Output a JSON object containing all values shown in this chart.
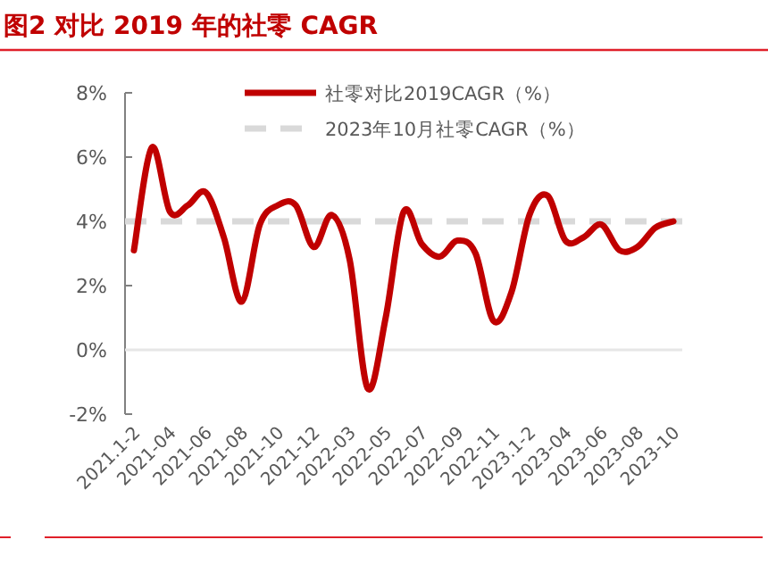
{
  "chart_data": {
    "type": "line",
    "title": "图2  对比 2019 年的社零 CAGR",
    "categories": [
      "2021.1-2",
      null,
      "2021-04",
      null,
      "2021-06",
      null,
      "2021-08",
      null,
      "2021-10",
      null,
      "2021-12",
      null,
      "2022-03",
      null,
      "2022-05",
      null,
      "2022-07",
      null,
      "2022-09",
      null,
      "2022-11",
      null,
      "2023.1-2",
      null,
      "2023-04",
      null,
      "2023-06",
      null,
      "2023-08",
      null,
      "2023-10"
    ],
    "series": [
      {
        "name": "社零对比2019CAGR（%）",
        "color": "#c00000",
        "values": [
          3.1,
          6.3,
          4.3,
          4.5,
          4.9,
          3.5,
          1.5,
          3.9,
          4.5,
          4.5,
          3.2,
          4.2,
          2.8,
          -1.2,
          1.0,
          4.3,
          3.3,
          2.9,
          3.4,
          3.0,
          0.9,
          1.8,
          4.2,
          4.8,
          3.4,
          3.5,
          3.9,
          3.1,
          3.2,
          3.8,
          4.0
        ]
      }
    ],
    "ref_lines": [
      {
        "axis": "y",
        "value": 4,
        "label": "2023年10月社零CAGR（%）",
        "color": "#d9d9d9",
        "line_style": "dashed"
      }
    ],
    "ylim": [
      -2,
      8
    ],
    "yticks": [
      {
        "value": -2,
        "label": "-2%"
      },
      {
        "value": 0,
        "label": "0%"
      },
      {
        "value": 2,
        "label": "2%"
      },
      {
        "value": 4,
        "label": "4%"
      },
      {
        "value": 6,
        "label": "6%"
      },
      {
        "value": 8,
        "label": "8%"
      }
    ],
    "legend": "top right",
    "grid": false,
    "marker": "none",
    "line_style": "solid"
  }
}
